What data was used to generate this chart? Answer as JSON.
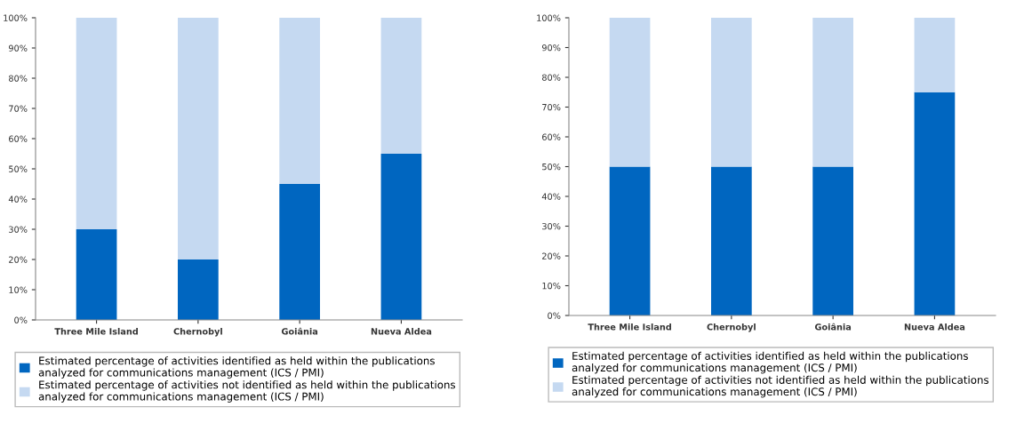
{
  "chart_data": [
    {
      "type": "bar",
      "stacked": true,
      "categories": [
        "Three Mile Island",
        "Chernobyl",
        "Goiânia",
        "Nueva Aldea"
      ],
      "ylim": [
        0,
        100
      ],
      "yticks": [
        {
          "value": 0,
          "label": "0%"
        },
        {
          "value": 10,
          "label": "10%"
        },
        {
          "value": 20,
          "label": "20%"
        },
        {
          "value": 30,
          "label": "30%"
        },
        {
          "value": 40,
          "label": "40%"
        },
        {
          "value": 50,
          "label": "50%"
        },
        {
          "value": 60,
          "label": "60%"
        },
        {
          "value": 70,
          "label": "70%"
        },
        {
          "value": 80,
          "label": "80%"
        },
        {
          "value": 90,
          "label": "90%"
        },
        {
          "value": 100,
          "label": "100%"
        }
      ],
      "legend": "bottom",
      "series": [
        {
          "name": "Estimated percentage of activities identified as held within the publications\nanalyzed for communications management (ICS / PMI)",
          "color": "#0066c0",
          "values": [
            30,
            20,
            45,
            55
          ]
        },
        {
          "name": "Estimated percentage of activities not identified as held within the publications\nanalyzed for communications management (ICS / PMI)",
          "color": "#c5d9f1",
          "values": [
            70,
            80,
            55,
            45
          ]
        }
      ]
    },
    {
      "type": "bar",
      "stacked": true,
      "categories": [
        "Three Mile Island",
        "Chernobyl",
        "Goiânia",
        "Nueva Aldea"
      ],
      "ylim": [
        0,
        100
      ],
      "yticks": [
        {
          "value": 0,
          "label": "0%"
        },
        {
          "value": 10,
          "label": "10%"
        },
        {
          "value": 20,
          "label": "20%"
        },
        {
          "value": 30,
          "label": "30%"
        },
        {
          "value": 40,
          "label": "40%"
        },
        {
          "value": 50,
          "label": "50%"
        },
        {
          "value": 60,
          "label": "60%"
        },
        {
          "value": 70,
          "label": "70%"
        },
        {
          "value": 80,
          "label": "80%"
        },
        {
          "value": 90,
          "label": "90%"
        },
        {
          "value": 100,
          "label": "100%"
        }
      ],
      "legend": "bottom",
      "series": [
        {
          "name": "Estimated percentage of activities identified as held within the publications\nanalyzed for communications management (ICS / PMI)",
          "color": "#0066c0",
          "values": [
            50,
            50,
            50,
            75
          ]
        },
        {
          "name": "Estimated percentage of activities not identified as held within the publications\nanalyzed for communications management (ICS / PMI)",
          "color": "#c5d9f1",
          "values": [
            50,
            50,
            50,
            25
          ]
        }
      ]
    }
  ]
}
